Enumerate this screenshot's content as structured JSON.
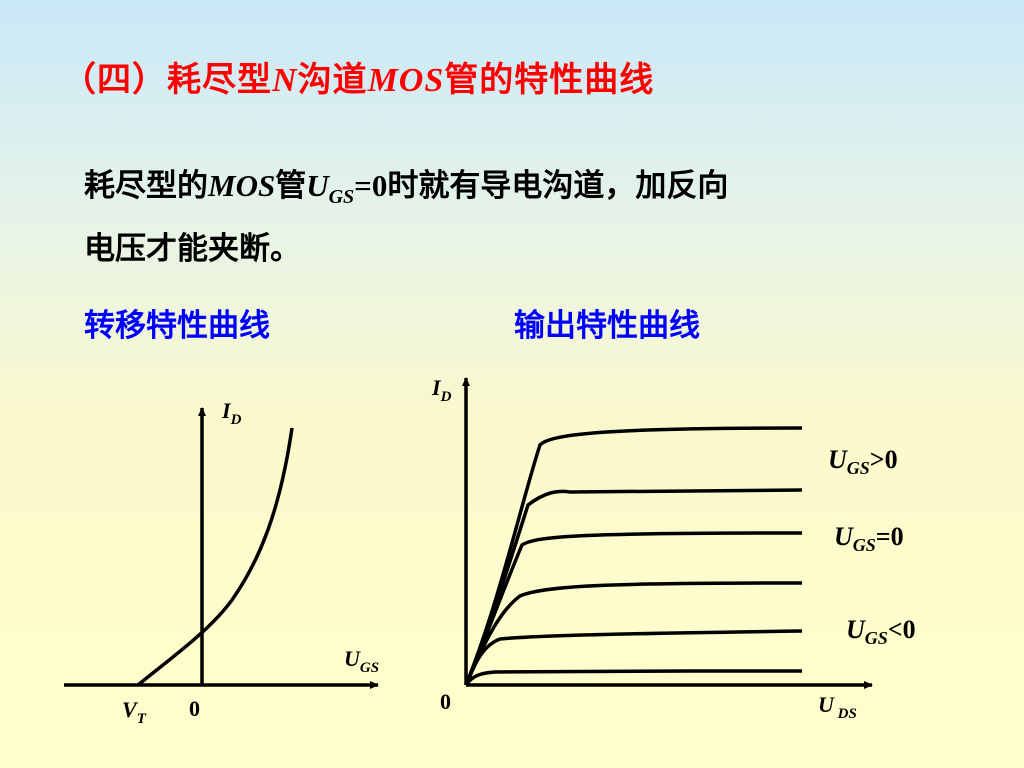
{
  "title": {
    "open": "（四）耗尽型",
    "n": "N",
    "mid": "沟道",
    "mos": "MOS",
    "tail": "管的特性曲线"
  },
  "paragraph": {
    "p1": "耗尽型的",
    "mos": "MOS",
    "p2": "管",
    "u": "U",
    "gs": "GS",
    "eq": "=0",
    "p3": "时就有导电沟道，加反向",
    "line2": "电压才能夹断。"
  },
  "subheadings": {
    "transfer": "转移特性曲线",
    "output": "输出特性曲线"
  },
  "transfer_chart": {
    "y_axis": {
      "main": "I",
      "sub": "D"
    },
    "x_axis": {
      "main": "U",
      "sub": "GS"
    },
    "vt": {
      "main": "V",
      "sub": "T"
    },
    "origin": "0"
  },
  "output_chart": {
    "y_axis": {
      "main": "I",
      "sub": "D"
    },
    "x_axis": {
      "main": "U",
      "sub": " DS"
    },
    "origin": "0",
    "curve_labels": [
      {
        "main": "U",
        "sub": "GS",
        "rel": ">0"
      },
      {
        "main": "U",
        "sub": "GS",
        "rel": "=0"
      },
      {
        "main": "U",
        "sub": "GS",
        "rel": "<0"
      }
    ]
  },
  "colors": {
    "title": "#ff0000",
    "subheading": "#0000ff",
    "text": "#000000"
  }
}
